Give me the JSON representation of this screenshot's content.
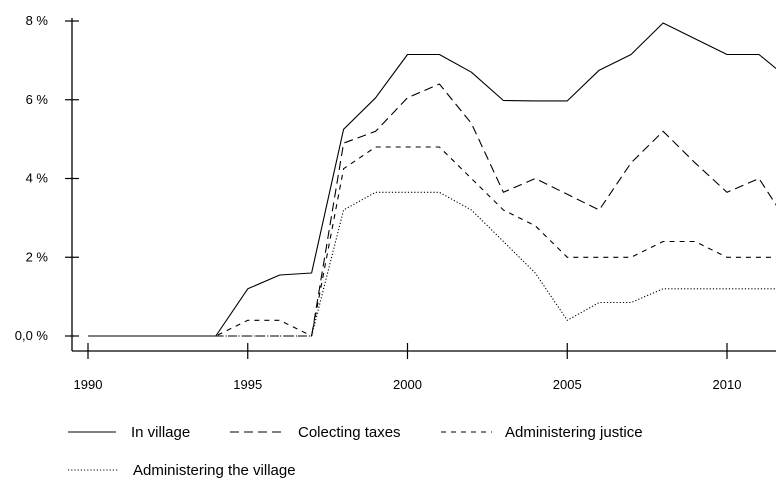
{
  "chart_data": {
    "type": "line",
    "title": "",
    "xlabel": "",
    "ylabel": "",
    "xlim": [
      1989.5,
      2011.6
    ],
    "ylim": [
      -0.2,
      8.2
    ],
    "x_ticks": [
      1990,
      1995,
      2000,
      2005,
      2010
    ],
    "x_tick_labels": [
      "1990",
      "1995",
      "2000",
      "2005",
      "2010"
    ],
    "y_ticks": [
      0,
      2,
      4,
      6,
      8
    ],
    "y_tick_labels": [
      "0,0 %",
      "2 %",
      "4 %",
      "6 %",
      "8 %"
    ],
    "grid": false,
    "legend_position": "bottom",
    "x": [
      1990,
      1991,
      1992,
      1993,
      1994,
      1995,
      1996,
      1997,
      1998,
      1999,
      2000,
      2001,
      2002,
      2003,
      2004,
      2005,
      2006,
      2007,
      2008,
      2009,
      2010,
      2011,
      2011.6
    ],
    "series": [
      {
        "name": "In village",
        "dash": "solid",
        "values": [
          0,
          0,
          0,
          0,
          0,
          1.2,
          1.55,
          1.6,
          5.25,
          6.05,
          7.15,
          7.15,
          6.7,
          5.98,
          5.97,
          5.97,
          6.75,
          7.15,
          7.95,
          7.55,
          7.15,
          7.15,
          6.75
        ]
      },
      {
        "name": "Colecting taxes",
        "dash": "long-dash",
        "values": [
          0,
          0,
          0,
          0,
          0,
          0,
          0,
          0,
          4.9,
          5.2,
          6.05,
          6.4,
          5.4,
          3.65,
          4.0,
          3.6,
          3.2,
          4.4,
          5.2,
          4.4,
          3.65,
          4.0,
          3.25
        ]
      },
      {
        "name": "Administering justice",
        "dash": "short-dash",
        "values": [
          0,
          0,
          0,
          0,
          0,
          0.4,
          0.4,
          0,
          4.25,
          4.8,
          4.8,
          4.8,
          4.0,
          3.2,
          2.8,
          2.0,
          2.0,
          2.0,
          2.4,
          2.4,
          2.0,
          2.0,
          2.0
        ]
      },
      {
        "name": "Administering the village",
        "dash": "dotted",
        "values": [
          0,
          0,
          0,
          0,
          0,
          0,
          0,
          0,
          3.2,
          3.65,
          3.65,
          3.65,
          3.2,
          2.4,
          1.6,
          0.4,
          0.85,
          0.85,
          1.2,
          1.2,
          1.2,
          1.2,
          1.2
        ]
      }
    ]
  }
}
